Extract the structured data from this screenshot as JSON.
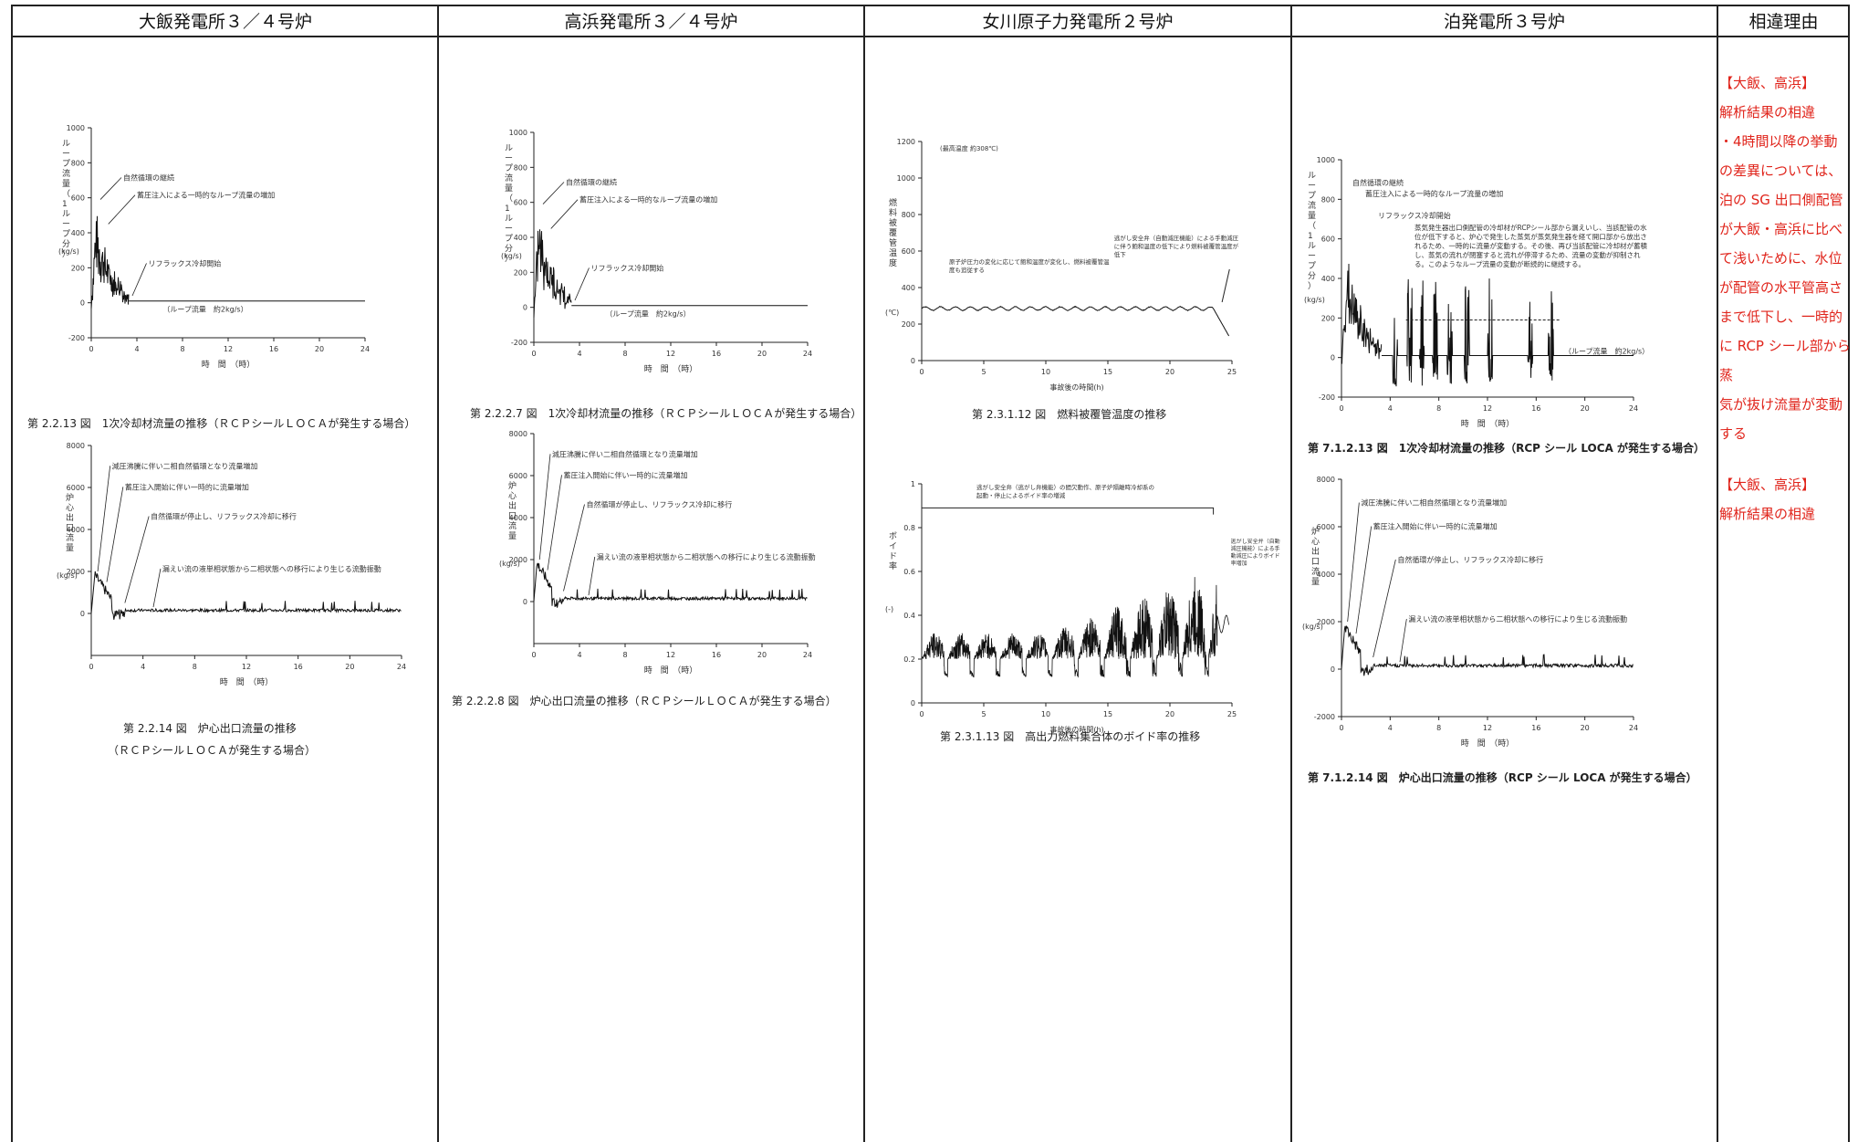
{
  "header": {
    "col1": "大飯発電所３／４号炉",
    "col2": "高浜発電所３／４号炉",
    "col3": "女川原子力発電所２号炉",
    "col4": "泊発電所３号炉",
    "col5": "相違理由"
  },
  "col1": {
    "fig_a_caption": "第 2.2.13 図　1次冷却材流量の推移（ＲＣＰシールＬＯＣＡが発生する場合）",
    "fig_a_ylabel": "ループ流量（1ループ分）",
    "fig_a_yunit": "(kg/s)",
    "fig_a_xlabel": "時　間　（時）",
    "fig_a_ann": [
      "自然循環の継続",
      "蓄圧注入による一時的なループ流量の増加",
      "リフラックス冷却開始",
      "（ループ流量　約2kg/s）"
    ],
    "fig_b_caption1": "第 2.2.14 図　炉心出口流量の推移",
    "fig_b_caption2": "（ＲＣＰシールＬＯＣＡが発生する場合）",
    "fig_b_ylabel": "炉心出口流量",
    "fig_b_yunit": "(kg/s)",
    "fig_b_xlabel": "時　間　（時）",
    "fig_b_ann": [
      "減圧沸騰に伴い二相自然循環となり流量増加",
      "蓄圧注入開始に伴い一時的に流量増加",
      "自然循環が停止し、リフラックス冷却に移行",
      "漏えい流の液単相状態から二相状態への移行により生じる流動振動"
    ]
  },
  "col2": {
    "fig_a_caption": "第 2.2.2.7 図　1次冷却材流量の推移（ＲＣＰシールＬＯＣＡが発生する場合）",
    "fig_a_ylabel": "ループ流量（1ループ分）",
    "fig_a_yunit": "(kg/s)",
    "fig_a_xlabel": "時　間　（時）",
    "fig_a_ann": [
      "自然循環の継続",
      "蓄圧注入による一時的なループ流量の増加",
      "リフラックス冷却開始",
      "（ループ流量　約2kg/s）"
    ],
    "fig_b_caption": "第 2.2.2.8 図　炉心出口流量の推移（ＲＣＰシールＬＯＣＡが発生する場合）",
    "fig_b_ylabel": "炉心出口流量",
    "fig_b_yunit": "(kg/s)",
    "fig_b_xlabel": "時　間　（時）",
    "fig_b_ann": [
      "減圧沸騰に伴い二相自然循環となり流量増加",
      "蓄圧注入開始に伴い一時的に流量増加",
      "自然循環が停止し、リフラックス冷却に移行",
      "漏えい流の液単相状態から二相状態への移行により生じる流動振動"
    ]
  },
  "col3": {
    "fig_a_caption": "第 2.3.1.12 図　燃料被覆管温度の推移",
    "fig_a_ylabel": "燃料被覆管温度",
    "fig_a_yunit": "(℃)",
    "fig_a_xlabel": "事故後の時間(h)",
    "fig_a_max": "(最高温度 約308℃)",
    "fig_a_ann": [
      "原子炉圧力の変化に応じて飽和温度が変化し、燃料被覆管温度も追従する",
      "逃がし安全弁（自動減圧機能）による手動減圧に伴う飽和温度の低下により燃料被覆管温度が低下"
    ],
    "fig_b_caption": "第 2.3.1.13 図　高出力燃料集合体のボイド率の推移",
    "fig_b_ylabel": "ボイド率",
    "fig_b_yunit": "(-)",
    "fig_b_xlabel": "事故後の時間(h)",
    "fig_b_ann": [
      "逃がし安全弁（逃がし弁機能）の間欠動作、原子炉隔離時冷却系の起動・停止によるボイド率の増減",
      "逃がし安全弁（自動減圧機能）による手動減圧によりボイド率増加"
    ]
  },
  "col4": {
    "fig_a_caption": "第 7.1.2.13 図　1次冷却材流量の推移（RCP シール LOCA が発生する場合）",
    "fig_a_ylabel": "ループ流量（1ループ分）",
    "fig_a_yunit": "(kg/s)",
    "fig_a_xlabel": "時　間　（時）",
    "fig_a_ann": [
      "自然循環の継続",
      "蓄圧注入による一時的なループ流量の増加",
      "リフラックス冷却開始",
      "蒸気発生器出口側配管の冷却材がRCPシール部から漏えいし、当該配管の水位が低下すると、炉心で発生した蒸気が蒸気発生器を経て開口部から放出されるため、一時的に流量が変動する。その後、再び当該配管に冷却材が蓄積し、蒸気の流れが閉塞すると流れが停滞するため、流量の変動が抑制される。このようなループ流量の変動が断続的に継続する。",
      "（ループ流量　約2kg/s）"
    ],
    "fig_b_caption": "第 7.1.2.14 図　炉心出口流量の推移（RCP シール LOCA が発生する場合）",
    "fig_b_ylabel": "炉心出口流量",
    "fig_b_yunit": "(kg/s)",
    "fig_b_xlabel": "時　間　（時）",
    "fig_b_ann": [
      "減圧沸騰に伴い二相自然循環となり流量増加",
      "蓄圧注入開始に伴い一時的に流量増加",
      "自然循環が停止し、リフラックス冷却に移行",
      "漏えい流の液単相状態から二相状態への移行により生じる流動振動"
    ]
  },
  "col5": {
    "note1": [
      "【大飯、高浜】",
      "解析結果の相違",
      "・4時間以降の挙動",
      "の差異については、",
      "泊の SG 出口側配管",
      "が大飯・高浜に比べ",
      "て浅いために、水位",
      "が配管の水平管高さ",
      "まで低下し、一時的",
      "に RCP シール部から蒸",
      "気が抜け流量が変動",
      "する"
    ],
    "note2": [
      "【大飯、高浜】",
      "解析結果の相違"
    ]
  },
  "chart_data": [
    {
      "type": "line",
      "id": "ohi_loop",
      "xlim": [
        0,
        24
      ],
      "ylim": [
        -200,
        1000
      ],
      "xticks": [
        0,
        4,
        8,
        12,
        16,
        20,
        24
      ],
      "yticks": [
        -200,
        0,
        200,
        400,
        600,
        800,
        1000
      ]
    },
    {
      "type": "line",
      "id": "ohi_core",
      "xlim": [
        0,
        24
      ],
      "ylim": [
        -2000,
        8000
      ],
      "xticks": [
        0,
        4,
        8,
        12,
        16,
        20,
        24
      ],
      "yticks": [
        0,
        2000,
        4000,
        6000,
        8000
      ]
    },
    {
      "type": "line",
      "id": "takahama_loop",
      "xlim": [
        0,
        24
      ],
      "ylim": [
        -200,
        1000
      ],
      "xticks": [
        0,
        4,
        8,
        12,
        16,
        20,
        24
      ],
      "yticks": [
        -200,
        0,
        200,
        400,
        600,
        800,
        1000
      ]
    },
    {
      "type": "line",
      "id": "takahama_core",
      "xlim": [
        0,
        24
      ],
      "ylim": [
        -2000,
        8000
      ],
      "xticks": [
        0,
        4,
        8,
        12,
        16,
        20,
        24
      ],
      "yticks": [
        0,
        2000,
        4000,
        6000,
        8000
      ]
    },
    {
      "type": "line",
      "id": "onagawa_temp",
      "xlim": [
        0,
        25
      ],
      "ylim": [
        0,
        1200
      ],
      "xticks": [
        0,
        5,
        10,
        15,
        20,
        25
      ],
      "yticks": [
        0,
        200,
        400,
        600,
        800,
        1000,
        1200
      ]
    },
    {
      "type": "line",
      "id": "onagawa_void",
      "xlim": [
        0,
        25
      ],
      "ylim": [
        0,
        1.0
      ],
      "xticks": [
        0,
        5,
        10,
        15,
        20,
        25
      ],
      "yticks": [
        0.0,
        0.2,
        0.4,
        0.6,
        0.8,
        1.0
      ]
    },
    {
      "type": "line",
      "id": "tomari_loop",
      "xlim": [
        0,
        24
      ],
      "ylim": [
        -200,
        1000
      ],
      "xticks": [
        0,
        4,
        8,
        12,
        16,
        20,
        24
      ],
      "yticks": [
        -200,
        0,
        200,
        400,
        600,
        800,
        1000
      ]
    },
    {
      "type": "line",
      "id": "tomari_core",
      "xlim": [
        0,
        24
      ],
      "ylim": [
        -2000,
        8000
      ],
      "xticks": [
        0,
        4,
        8,
        12,
        16,
        20,
        24
      ],
      "yticks": [
        -2000,
        0,
        2000,
        4000,
        6000,
        8000
      ]
    }
  ]
}
